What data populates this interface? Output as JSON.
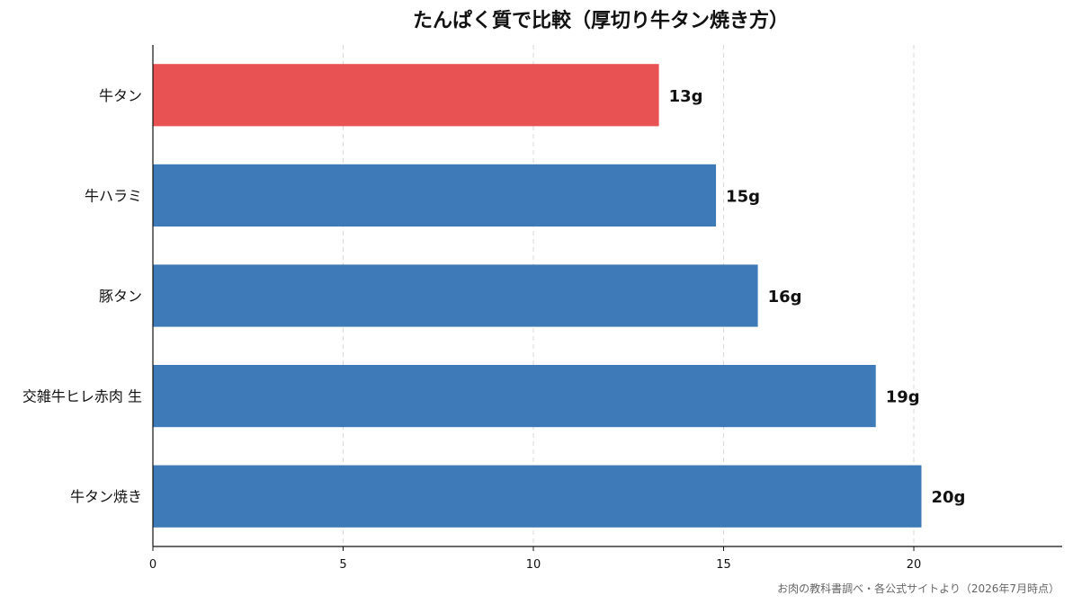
{
  "chart_data": {
    "type": "bar",
    "orientation": "horizontal",
    "title": "たんぱく質で比較（厚切り牛タン焼き方）",
    "categories": [
      "牛タン",
      "牛ハラミ",
      "豚タン",
      "交雑牛ヒレ赤肉 生",
      "牛タン焼き"
    ],
    "values": [
      13.3,
      14.8,
      15.9,
      19.0,
      20.2
    ],
    "value_labels": [
      "13g",
      "15g",
      "16g",
      "19g",
      "20g"
    ],
    "bar_colors": [
      "#e85252",
      "#3d7ab7",
      "#3d7ab7",
      "#3d7ab7",
      "#3d7ab7"
    ],
    "highlight_color": "#e85252",
    "base_color": "#3d7ab7",
    "xlim": [
      0,
      23.9
    ],
    "xticks": [
      0,
      5,
      10,
      15,
      20
    ],
    "xtick_labels": [
      "0",
      "5",
      "10",
      "15",
      "20"
    ],
    "xlabel": "",
    "ylabel": "",
    "grid": "x-dashed",
    "source": "お肉の教科書調べ・各公式サイトより（2026年7月時点）"
  }
}
